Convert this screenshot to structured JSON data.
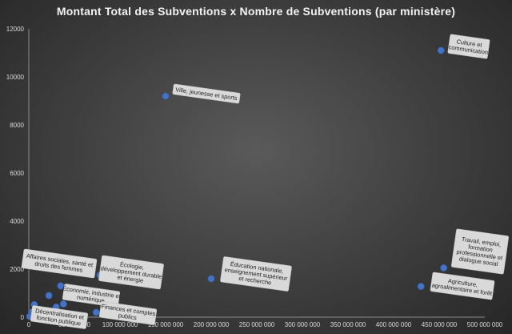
{
  "chart_data": {
    "type": "scatter",
    "title": "Montant Total des Subventions x Nombre de Subventions (par ministère)",
    "xlabel": "",
    "ylabel": "",
    "xlim": [
      0,
      500000000
    ],
    "ylim": [
      0,
      12000
    ],
    "x_ticks": [
      0,
      50000000,
      100000000,
      150000000,
      200000000,
      250000000,
      300000000,
      350000000,
      400000000,
      450000000,
      500000000
    ],
    "x_tick_labels": [
      "0",
      "50 000 000",
      "100 000 000",
      "150 000 000",
      "200 000 000",
      "250 000 000",
      "300 000 000",
      "350 000 000",
      "400 000 000",
      "450 000 000",
      "500 000 000"
    ],
    "y_ticks": [
      0,
      2000,
      4000,
      6000,
      8000,
      10000,
      12000
    ],
    "y_tick_labels": [
      "0",
      "2000",
      "4000",
      "6000",
      "8000",
      "10000",
      "12000"
    ],
    "grid": false,
    "marker_color": "#4472c4",
    "callout_fill": "#d9d9d9",
    "points": [
      {
        "label": "Culture et communication",
        "x": 452000000,
        "y": 11100
      },
      {
        "label": "Ville, jeunesse et sports",
        "x": 150000000,
        "y": 9200
      },
      {
        "label": "Travail, emploi, formation professionnelle et dialogue social",
        "x": 455000000,
        "y": 2050
      },
      {
        "label": "Agriculture, agroalimentaire et forêt",
        "x": 430000000,
        "y": 1280
      },
      {
        "label": "Éducation nationale, enseignement supérieur et recherche",
        "x": 200000000,
        "y": 1600
      },
      {
        "label": "Écologie, développement durable et énergie",
        "x": 78000000,
        "y": 1750
      },
      {
        "label": "Affaires sociales, santé et droits des femmes",
        "x": 22000000,
        "y": 900
      },
      {
        "label": "Économie, industrie et numérique",
        "x": 35000000,
        "y": 1300
      },
      {
        "label": "Finances et comptes publics",
        "x": 74000000,
        "y": 200
      },
      {
        "label": "Décentralisation et fonction publique",
        "x": 38000000,
        "y": 550
      },
      {
        "label": "",
        "x": 6000000,
        "y": 520
      },
      {
        "label": "",
        "x": 4000000,
        "y": 230
      },
      {
        "label": "",
        "x": 1000000,
        "y": 30
      },
      {
        "label": "",
        "x": 30000000,
        "y": 420
      }
    ]
  }
}
